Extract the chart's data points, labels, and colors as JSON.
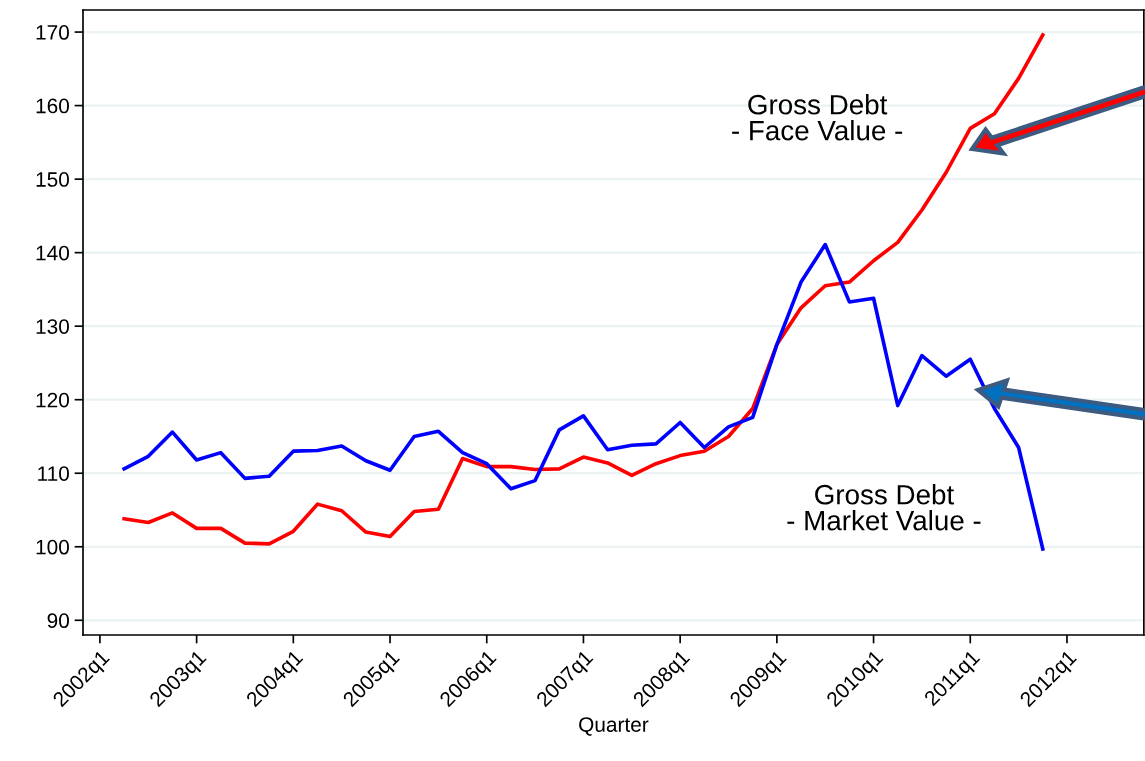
{
  "chart_data": {
    "type": "line",
    "xlabel": "Quarter",
    "categories": [
      "2002q1",
      null,
      null,
      null,
      "2003q1",
      null,
      null,
      null,
      "2004q1",
      null,
      null,
      null,
      "2005q1",
      null,
      null,
      null,
      "2006q1",
      null,
      null,
      null,
      "2007q1",
      null,
      null,
      null,
      "2008q1",
      null,
      null,
      null,
      "2009q1",
      null,
      null,
      null,
      "2010q1",
      null,
      null,
      null,
      "2011q1",
      null,
      null,
      null,
      "2012q1",
      null,
      null,
      null
    ],
    "series": [
      {
        "color": "#ff0000",
        "values": [
          null,
          103.8,
          103.3,
          104.6,
          102.5,
          102.5,
          100.5,
          100.4,
          102.1,
          105.8,
          104.9,
          102.0,
          101.4,
          104.8,
          105.1,
          112.0,
          110.9,
          110.9,
          110.5,
          110.6,
          112.2,
          111.4,
          109.7,
          111.3,
          112.4,
          113.0,
          115.0,
          118.8,
          127.5,
          132.5,
          135.5,
          136.0,
          138.9,
          141.4,
          145.8,
          150.9,
          156.9,
          158.9,
          163.7,
          169.6,
          null,
          null,
          null,
          null
        ]
      },
      {
        "color": "#0000ff",
        "values": [
          null,
          110.6,
          112.3,
          115.6,
          111.8,
          112.8,
          109.3,
          109.6,
          113.0,
          113.1,
          113.7,
          111.7,
          110.4,
          115.0,
          115.7,
          112.8,
          111.3,
          107.9,
          109.0,
          115.9,
          117.8,
          113.2,
          113.8,
          114.0,
          116.9,
          113.5,
          116.3,
          117.6,
          127.5,
          136.0,
          141.1,
          133.3,
          133.8,
          119.2,
          126.0,
          123.2,
          125.5,
          118.8,
          113.5,
          99.7,
          null,
          null,
          null,
          null
        ]
      }
    ],
    "ylim": [
      88,
      173
    ],
    "yticks": [
      90,
      100,
      110,
      120,
      130,
      140,
      150,
      160,
      170
    ],
    "grid": "y",
    "legend": false,
    "marker": "none",
    "line_style": "solid",
    "annotations": [
      "Gross Debt\n- Face Value -",
      "Gross Debt\n- Market Value -"
    ]
  }
}
